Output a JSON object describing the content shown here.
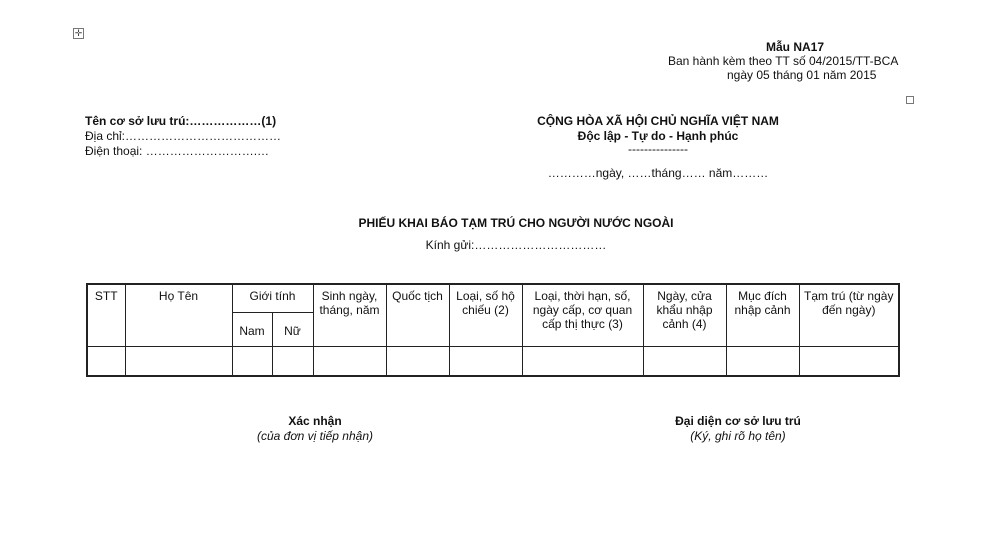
{
  "header": {
    "form_code": "Mẫu  NA17",
    "issued_by": "Ban hành kèm theo TT số 04/2015/TT-BCA",
    "issued_date": "ngày 05 tháng 01 năm 2015"
  },
  "left": {
    "facility": "Tên cơ sở lưu trú:………………(1)",
    "address": "Địa chỉ:…………………………………",
    "phone": "Điện thoại: ……………………….…"
  },
  "right": {
    "country": "CỘNG HÒA XÃ HỘI CHỦ NGHĨA VIỆT NAM",
    "motto": "Độc lập - Tự do - Hạnh phúc",
    "rule": "---------------",
    "date_line": "…………ngày, ……tháng…… năm………"
  },
  "title": "PHIẾU KHAI BÁO TẠM TRÚ CHO NGƯỜI NƯỚC NGOÀI",
  "recipient": "Kính gửi:……………………………",
  "table": {
    "headers": [
      "STT",
      "Họ Tên",
      "Giới tính",
      "Sinh ngày, tháng, năm",
      "Quốc tịch",
      "Loại, số hộ chiếu (2)",
      "Loại, thời hạn, số, ngày cấp, cơ quan cấp thị thực (3)",
      "Ngày, cửa khẩu nhập cảnh (4)",
      "Mục đích nhập cảnh",
      "Tạm trú (từ ngày đến ngày)"
    ],
    "sub_headers": [
      "Nam",
      "Nữ"
    ]
  },
  "signatures": {
    "left_title": "Xác nhận",
    "left_note": "(của đơn vị tiếp nhận)",
    "right_title": "Đại diện cơ sở lưu trú",
    "right_note": "(Ký, ghi rõ họ tên)"
  }
}
